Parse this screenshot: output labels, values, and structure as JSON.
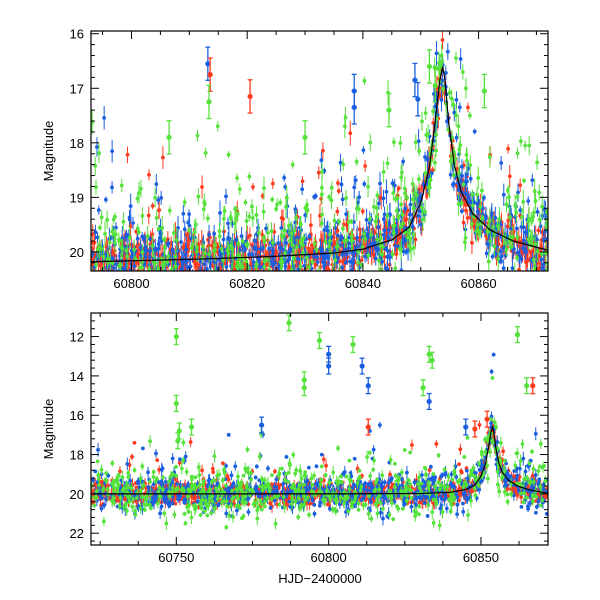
{
  "chart_data": [
    {
      "type": "scatter",
      "ylabel": "Magnitude",
      "xlabel": "",
      "xlim": [
        60793,
        60872
      ],
      "ylim": [
        20.35,
        15.95
      ],
      "y_inverted": true,
      "xticks_labeled": [
        60800,
        60820,
        60840,
        60860
      ],
      "yticks_labeled": [
        16,
        17,
        18,
        19,
        20
      ],
      "colors": {
        "red": "#ff3b1f",
        "blue": "#1a5fe0",
        "green": "#55e23a"
      },
      "model_curve": {
        "x": [
          60793,
          60805,
          60815,
          60825,
          60835,
          60840,
          60845,
          60848,
          60850,
          60851.5,
          60852.5,
          60853.3,
          60853.8,
          60854.2,
          60854.8,
          60855.8,
          60857,
          60859,
          60862,
          60866,
          60872
        ],
        "y": [
          20.18,
          20.15,
          20.12,
          20.08,
          20.02,
          19.95,
          19.78,
          19.55,
          19.1,
          18.45,
          17.6,
          16.85,
          16.6,
          16.85,
          17.6,
          18.4,
          18.9,
          19.3,
          19.6,
          19.8,
          19.97
        ]
      },
      "series": [
        {
          "color": "red",
          "count": 900,
          "sigma": 0.22,
          "outlier_fraction": 0.06
        },
        {
          "color": "blue",
          "count": 700,
          "sigma": 0.3,
          "outlier_fraction": 0.1
        },
        {
          "color": "green",
          "count": 500,
          "sigma": 0.4,
          "outlier_fraction": 0.28
        }
      ],
      "highlights": [
        {
          "x": 60813.2,
          "y": 16.55,
          "color": "blue"
        },
        {
          "x": 60813.6,
          "y": 16.75,
          "color": "red"
        },
        {
          "x": 60813.4,
          "y": 17.25,
          "color": "green"
        },
        {
          "x": 60820.5,
          "y": 17.15,
          "color": "red"
        },
        {
          "x": 60838.5,
          "y": 17.05,
          "color": "blue"
        },
        {
          "x": 60838.5,
          "y": 17.35,
          "color": "blue"
        },
        {
          "x": 60849.0,
          "y": 16.85,
          "color": "blue"
        },
        {
          "x": 60849.5,
          "y": 17.2,
          "color": "blue"
        },
        {
          "x": 60851.5,
          "y": 16.6,
          "color": "green"
        },
        {
          "x": 60852.5,
          "y": 16.95,
          "color": "green"
        },
        {
          "x": 60861.0,
          "y": 17.05,
          "color": "green"
        },
        {
          "x": 60844.5,
          "y": 17.4,
          "color": "green"
        },
        {
          "x": 60830.0,
          "y": 17.9,
          "color": "green"
        },
        {
          "x": 60806.5,
          "y": 17.9,
          "color": "green"
        }
      ]
    },
    {
      "type": "scatter",
      "ylabel": "Magnitude",
      "xlabel": "HJD−2400000",
      "xlim": [
        60722,
        60872
      ],
      "ylim": [
        22.6,
        10.8
      ],
      "y_inverted": true,
      "xticks_labeled": [
        60750,
        60800,
        60850
      ],
      "yticks_labeled": [
        12,
        14,
        16,
        18,
        20,
        22
      ],
      "colors": {
        "red": "#ff3b1f",
        "blue": "#1a5fe0",
        "green": "#55e23a"
      },
      "model_curve": {
        "x": [
          60722,
          60760,
          60800,
          60830,
          60840,
          60845,
          60848,
          60850,
          60851.5,
          60852.5,
          60853.3,
          60853.8,
          60854.2,
          60854.8,
          60855.8,
          60857,
          60859,
          60862,
          60866,
          60872
        ],
        "y": [
          20.0,
          20.0,
          20.0,
          19.98,
          19.92,
          19.78,
          19.55,
          19.1,
          18.45,
          17.6,
          16.85,
          16.6,
          16.85,
          17.6,
          18.4,
          18.9,
          19.3,
          19.6,
          19.8,
          19.97
        ]
      },
      "series": [
        {
          "color": "red",
          "count": 1100,
          "sigma": 0.25,
          "outlier_fraction": 0.04
        },
        {
          "color": "blue",
          "count": 800,
          "sigma": 0.45,
          "outlier_fraction": 0.08
        },
        {
          "color": "green",
          "count": 600,
          "sigma": 0.65,
          "outlier_fraction": 0.12
        }
      ],
      "highlights": [
        {
          "x": 60750,
          "y": 12.0,
          "color": "green"
        },
        {
          "x": 60750,
          "y": 15.4,
          "color": "green"
        },
        {
          "x": 60751,
          "y": 16.8,
          "color": "green"
        },
        {
          "x": 60750.5,
          "y": 17.3,
          "color": "green"
        },
        {
          "x": 60755,
          "y": 16.6,
          "color": "green"
        },
        {
          "x": 60778,
          "y": 16.5,
          "color": "blue"
        },
        {
          "x": 60787,
          "y": 11.3,
          "color": "green"
        },
        {
          "x": 60792,
          "y": 14.2,
          "color": "green"
        },
        {
          "x": 60792,
          "y": 14.6,
          "color": "green"
        },
        {
          "x": 60797,
          "y": 12.2,
          "color": "green"
        },
        {
          "x": 60800,
          "y": 12.9,
          "color": "blue"
        },
        {
          "x": 60800,
          "y": 13.5,
          "color": "blue"
        },
        {
          "x": 60808,
          "y": 12.4,
          "color": "green"
        },
        {
          "x": 60811,
          "y": 13.5,
          "color": "blue"
        },
        {
          "x": 60813,
          "y": 14.5,
          "color": "blue"
        },
        {
          "x": 60813,
          "y": 16.6,
          "color": "red"
        },
        {
          "x": 60831,
          "y": 14.6,
          "color": "green"
        },
        {
          "x": 60833,
          "y": 12.9,
          "color": "green"
        },
        {
          "x": 60834,
          "y": 13.2,
          "color": "green"
        },
        {
          "x": 60833,
          "y": 15.3,
          "color": "blue"
        },
        {
          "x": 60845,
          "y": 16.6,
          "color": "blue"
        },
        {
          "x": 60848,
          "y": 16.7,
          "color": "red"
        },
        {
          "x": 60852,
          "y": 16.2,
          "color": "red"
        },
        {
          "x": 60862,
          "y": 11.9,
          "color": "green"
        },
        {
          "x": 60865,
          "y": 14.5,
          "color": "green"
        },
        {
          "x": 60867,
          "y": 14.5,
          "color": "red"
        }
      ]
    }
  ]
}
